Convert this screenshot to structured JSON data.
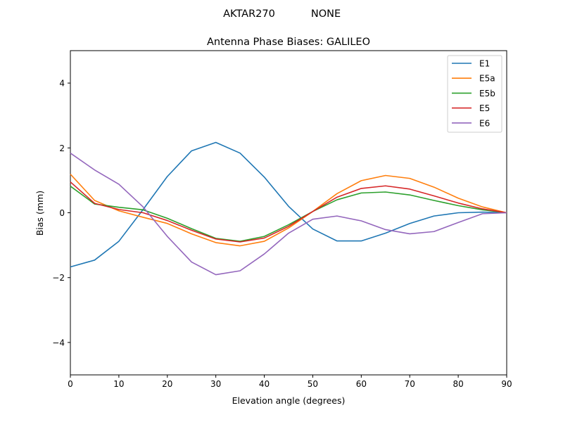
{
  "chart_data": {
    "type": "line",
    "suptitle_left": "AKTAR270",
    "suptitle_right": "NONE",
    "title": "Antenna Phase Biases: GALILEO",
    "xlabel": "Elevation angle (degrees)",
    "ylabel": "Bias (mm)",
    "xlim": [
      0,
      90
    ],
    "ylim": [
      -5,
      5
    ],
    "xticks": [
      0,
      10,
      20,
      30,
      40,
      50,
      60,
      70,
      80,
      90
    ],
    "yticks": [
      -4,
      -2,
      0,
      2,
      4
    ],
    "ytick_labels": [
      "−4",
      "−2",
      "0",
      "2",
      "4"
    ],
    "grid": false,
    "legend_position": "top-right",
    "x": [
      0,
      5,
      10,
      15,
      20,
      25,
      30,
      35,
      40,
      45,
      50,
      55,
      60,
      65,
      70,
      75,
      80,
      85,
      90
    ],
    "series": [
      {
        "name": "E1",
        "color": "#1f77b4",
        "values": [
          -1.67,
          -1.46,
          -0.88,
          0.1,
          1.12,
          1.91,
          2.17,
          1.84,
          1.1,
          0.2,
          -0.5,
          -0.87,
          -0.87,
          -0.63,
          -0.33,
          -0.1,
          0.0,
          0.02,
          0.0
        ]
      },
      {
        "name": "E5a",
        "color": "#ff7f0e",
        "values": [
          1.19,
          0.38,
          0.06,
          -0.14,
          -0.33,
          -0.65,
          -0.92,
          -1.02,
          -0.88,
          -0.47,
          0.04,
          0.59,
          0.99,
          1.15,
          1.06,
          0.79,
          0.45,
          0.18,
          0.0
        ]
      },
      {
        "name": "E5b",
        "color": "#2ca02c",
        "values": [
          0.82,
          0.27,
          0.17,
          0.09,
          -0.17,
          -0.49,
          -0.79,
          -0.88,
          -0.73,
          -0.37,
          0.04,
          0.4,
          0.61,
          0.64,
          0.55,
          0.38,
          0.22,
          0.09,
          0.0
        ]
      },
      {
        "name": "E5",
        "color": "#d62728",
        "values": [
          0.95,
          0.29,
          0.1,
          0.0,
          -0.24,
          -0.54,
          -0.81,
          -0.9,
          -0.78,
          -0.42,
          0.04,
          0.48,
          0.75,
          0.83,
          0.73,
          0.52,
          0.3,
          0.12,
          0.0
        ]
      },
      {
        "name": "E6",
        "color": "#9467bd",
        "values": [
          1.84,
          1.32,
          0.88,
          0.18,
          -0.73,
          -1.52,
          -1.91,
          -1.79,
          -1.27,
          -0.63,
          -0.2,
          -0.1,
          -0.25,
          -0.52,
          -0.65,
          -0.58,
          -0.3,
          -0.03,
          0.0
        ]
      }
    ]
  }
}
